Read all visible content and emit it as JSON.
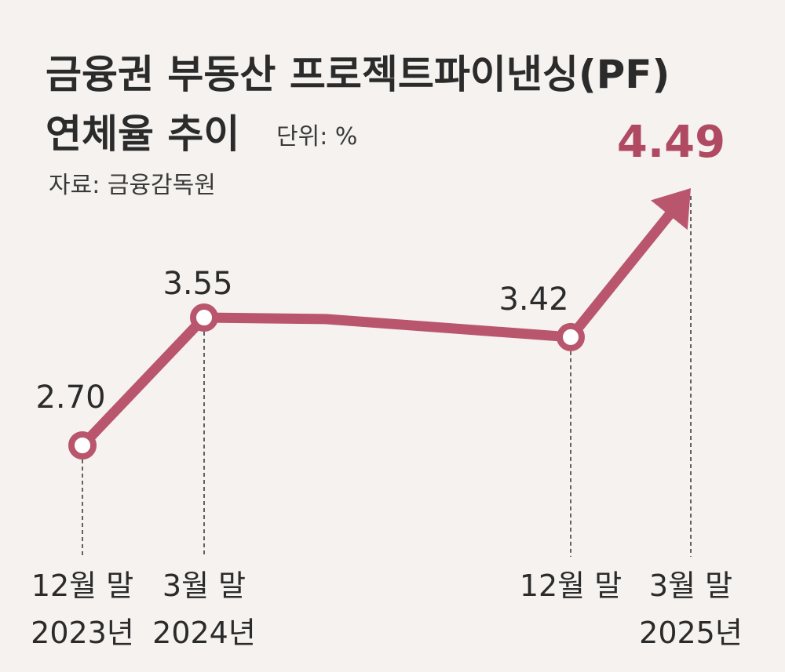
{
  "chart_data": {
    "type": "line",
    "title_line1": "금융권 부동산 프로젝트파이낸싱(PF)",
    "title_line2": "연체율 추이",
    "unit": "단위: %",
    "source": "자료: 금융감독원",
    "points": [
      {
        "label1": "12월 말",
        "label2": "2023년",
        "value": 2.7,
        "value_label": "2.70",
        "marker": true
      },
      {
        "label1": "3월 말",
        "label2": "2024년",
        "value": 3.55,
        "value_label": "3.55",
        "marker": true
      },
      {
        "label1": "",
        "label2": "",
        "value": 3.54,
        "value_label": "",
        "marker": false
      },
      {
        "label1": "12월 말",
        "label2": "",
        "value": 3.42,
        "value_label": "3.42",
        "marker": true
      },
      {
        "label1": "3월 말",
        "label2": "2025년",
        "value": 4.49,
        "value_label": "4.49",
        "marker": false,
        "arrow": true,
        "highlight": true
      }
    ],
    "ylim": [
      2.0,
      5.0
    ],
    "line_color": "#b9566d",
    "highlight_color": "#b04a63"
  }
}
